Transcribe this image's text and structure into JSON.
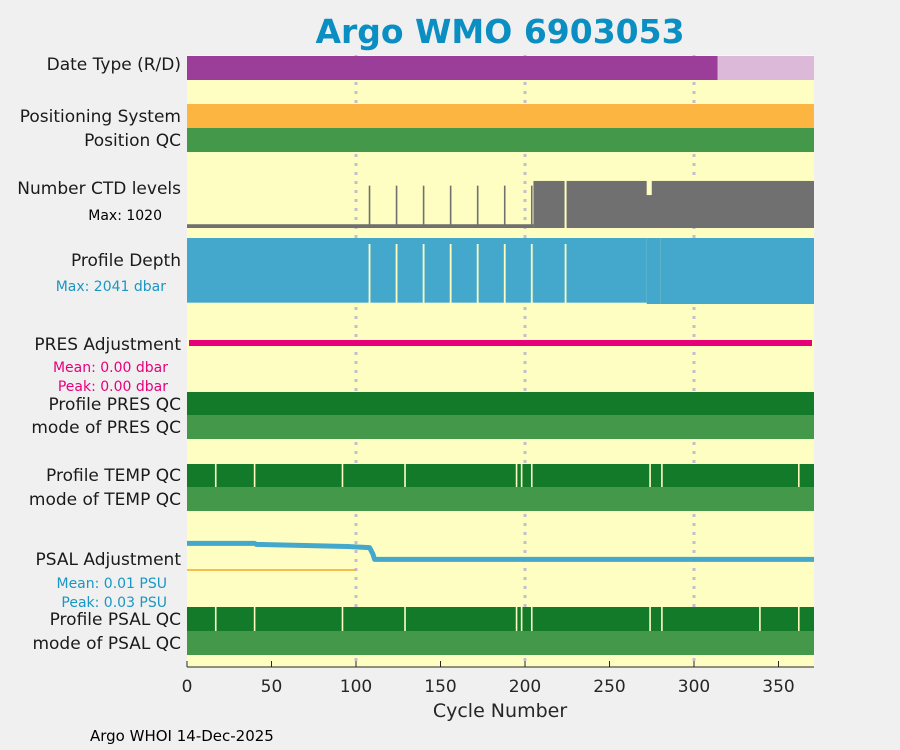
{
  "chart_data": {
    "type": "timeline",
    "title": "Argo WMO 6903053",
    "xlabel": "Cycle Number",
    "xlim": [
      0,
      371
    ],
    "xticks": [
      0,
      50,
      100,
      150,
      200,
      250,
      300,
      350
    ],
    "vertical_guides": [
      100,
      200,
      300
    ],
    "rows": {
      "date_type": {
        "label": "Date Type (R/D)",
        "segments": [
          {
            "from": 0,
            "to": 314,
            "color": "#9b3e99",
            "meaning": "D"
          },
          {
            "from": 314,
            "to": 371,
            "color": "#dcb9d9",
            "meaning": "R"
          }
        ]
      },
      "positioning_system": {
        "label": "Positioning System",
        "color": "#fbb540"
      },
      "position_qc": {
        "label": "Position QC",
        "color": "#44984a"
      },
      "ctd_levels": {
        "label": "Number CTD levels",
        "max_label": "Max: 1020",
        "max": 1020,
        "color": "#707070",
        "segments": [
          {
            "from": 0,
            "to": 205,
            "value": 80
          },
          {
            "from": 205,
            "to": 371,
            "value": 1000
          }
        ],
        "gaps": [
          224
        ],
        "spikes": [
          {
            "cycle": 108,
            "value": 900
          },
          {
            "cycle": 124,
            "value": 900
          },
          {
            "cycle": 140,
            "value": 900
          },
          {
            "cycle": 156,
            "value": 900
          },
          {
            "cycle": 172,
            "value": 900
          },
          {
            "cycle": 188,
            "value": 900
          },
          {
            "cycle": 204,
            "value": 900
          }
        ],
        "dips": [
          {
            "from": 272,
            "to": 275,
            "value": 700
          }
        ]
      },
      "profile_depth": {
        "label": "Profile Depth",
        "max_label": "Max: 2041 dbar",
        "max": 2041,
        "color": "#44a8cd",
        "segments": [
          {
            "from": 0,
            "to": 205,
            "value": 2000
          },
          {
            "from": 205,
            "to": 272,
            "value": 2000
          },
          {
            "from": 272,
            "to": 280,
            "value": 2041
          },
          {
            "from": 280,
            "to": 371,
            "value": 2041
          }
        ],
        "gaps": [
          108,
          124,
          140,
          156,
          172,
          188,
          204,
          224
        ],
        "shallow": [
          {
            "from": 205,
            "to": 272,
            "value": 2000
          }
        ]
      },
      "pres_adjustment": {
        "label": "PRES Adjustment",
        "mean_label": "Mean: 0.00 dbar",
        "peak_label": "Peak: 0.00 dbar",
        "color": "#e8007b",
        "value": 0
      },
      "profile_pres_qc": {
        "label": "Profile PRES QC",
        "color": "#137a2a"
      },
      "mode_pres_qc": {
        "label": "mode of PRES QC",
        "color": "#44984a"
      },
      "profile_temp_qc": {
        "label": "Profile TEMP QC",
        "color": "#137a2a",
        "gap_cycles": [
          17,
          40,
          92,
          129,
          195,
          198,
          204,
          274,
          281,
          362
        ]
      },
      "mode_temp_qc": {
        "label": "mode of TEMP QC",
        "color": "#44984a"
      },
      "psal_adjustment": {
        "label": "PSAL Adjustment",
        "mean_label": "Mean: 0.01 PSU",
        "peak_label": "Peak: 0.03 PSU",
        "color": "#44a8cd",
        "ref_color": "#f5a623",
        "points": [
          [
            0,
            0.025
          ],
          [
            40,
            0.025
          ],
          [
            41,
            0.024
          ],
          [
            95,
            0.022
          ],
          [
            108,
            0.021
          ],
          [
            110,
            0.015
          ],
          [
            111,
            0.01
          ],
          [
            371,
            0.01
          ]
        ]
      },
      "profile_psal_qc": {
        "label": "Profile PSAL QC",
        "color": "#137a2a",
        "gap_cycles": [
          17,
          40,
          92,
          129,
          195,
          198,
          204,
          274,
          281,
          339,
          362
        ]
      },
      "mode_psal_qc": {
        "label": "mode of PSAL QC",
        "color": "#44984a"
      }
    },
    "footer": "Argo WHOI 14-Dec-2025",
    "colors": {
      "background": "#f0f0f0",
      "plot_background": "#fefec2",
      "title": "#0b8ec2",
      "guide": "#c0c0d0",
      "gap": "#fefec2"
    }
  }
}
